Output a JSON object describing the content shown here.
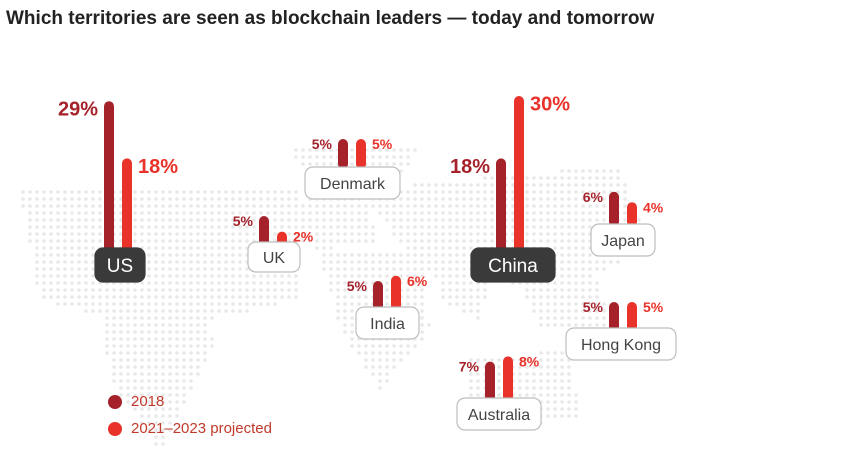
{
  "title": "Which territories are seen as blockchain leaders — today and tomorrow",
  "colors": {
    "series_2018": "#a5222b",
    "series_projected": "#e8322a",
    "highlight_label_bg": "#3a3a3a",
    "label_border": "#bdbdbd",
    "map_dots": "#e8e8e8"
  },
  "chart_data": {
    "type": "bar",
    "series": [
      {
        "name": "2018",
        "values": [
          29,
          5,
          5,
          5,
          18,
          6,
          5,
          7
        ]
      },
      {
        "name": "2021–2023 projected",
        "values": [
          18,
          2,
          5,
          6,
          30,
          4,
          5,
          8
        ]
      }
    ],
    "categories": [
      "US",
      "UK",
      "Denmark",
      "India",
      "China",
      "Japan",
      "Hong Kong",
      "Australia"
    ],
    "value_labels_2018": [
      "29%",
      "5%",
      "5%",
      "5%",
      "18%",
      "6%",
      "5%",
      "7%"
    ],
    "value_labels_projected": [
      "18%",
      "2%",
      "5%",
      "6%",
      "30%",
      "4%",
      "5%",
      "8%"
    ],
    "highlighted": [
      "US",
      "China"
    ],
    "legend_position": "bottom-left"
  },
  "legend": {
    "items": [
      {
        "label": "2018",
        "color": "#a5222b"
      },
      {
        "label": "2021–2023 projected",
        "color": "#e8322a"
      }
    ]
  }
}
